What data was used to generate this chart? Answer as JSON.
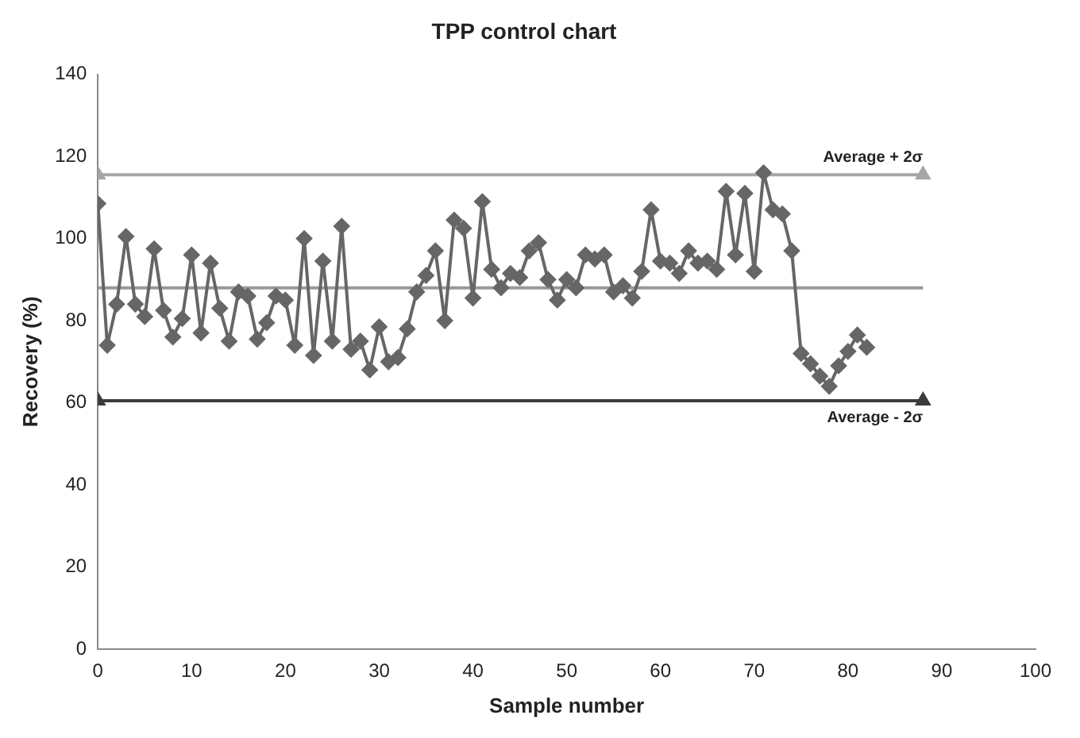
{
  "chart_data": {
    "type": "line",
    "title": "TPP control chart",
    "xlabel": "Sample number",
    "ylabel": "Recovery (%)",
    "xlim": [
      0,
      100
    ],
    "xticks": [
      0,
      10,
      20,
      30,
      40,
      50,
      60,
      70,
      80,
      90,
      100
    ],
    "ylim": [
      0,
      140
    ],
    "yticks": [
      0,
      20,
      40,
      60,
      80,
      100,
      120,
      140
    ],
    "grid": false,
    "legend": false,
    "line_style": "solid",
    "series": [
      {
        "color": "#666666",
        "marker": "diamond",
        "x": [
          0,
          1,
          2,
          3,
          4,
          5,
          6,
          7,
          8,
          9,
          10,
          11,
          12,
          13,
          14,
          15,
          16,
          17,
          18,
          19,
          20,
          21,
          22,
          23,
          24,
          25,
          26,
          27,
          28,
          29,
          30,
          31,
          32,
          33,
          34,
          35,
          36,
          37,
          38,
          39,
          40,
          41,
          42,
          43,
          44,
          45,
          46,
          47,
          48,
          49,
          50,
          51,
          52,
          53,
          54,
          55,
          56,
          57,
          58,
          59,
          60,
          61,
          62,
          63,
          64,
          65,
          66,
          67,
          68,
          69,
          70,
          71,
          72,
          73,
          74,
          75,
          76,
          77,
          78,
          79,
          80,
          81,
          82
        ],
        "values": [
          108.5,
          74,
          84,
          100.5,
          84,
          81,
          97.5,
          82.5,
          76,
          80.5,
          96,
          77,
          94,
          83,
          75,
          87,
          86,
          75.5,
          79.5,
          86,
          85,
          74,
          100,
          71.5,
          94.5,
          75,
          103,
          73,
          75,
          68,
          78.5,
          70,
          71,
          78,
          87,
          91,
          97,
          80,
          104.5,
          102.5,
          85.5,
          109,
          92.5,
          88,
          91.5,
          90.5,
          97,
          99,
          90,
          85,
          90,
          88,
          96,
          95,
          96,
          87,
          88.5,
          85.5,
          92,
          107,
          94.5,
          94,
          91.5,
          97,
          94,
          94.5,
          92.5,
          111.5,
          96,
          111,
          92,
          116,
          107,
          106,
          97,
          72,
          69.5,
          66.5,
          64,
          69,
          72.5,
          76.5,
          73.5
        ]
      },
      {
        "name": "Average + 2σ",
        "color": "#a6a6a6",
        "marker": "triangle",
        "x": [
          0,
          88
        ],
        "values": [
          115.5,
          115.5
        ]
      },
      {
        "color": "#999999",
        "marker": "none",
        "x": [
          0,
          88
        ],
        "values": [
          88,
          88
        ]
      },
      {
        "name": "Average - 2σ",
        "color": "#3c3c3c",
        "marker": "triangle",
        "x": [
          0,
          88
        ],
        "values": [
          60.5,
          60.5
        ]
      }
    ]
  }
}
